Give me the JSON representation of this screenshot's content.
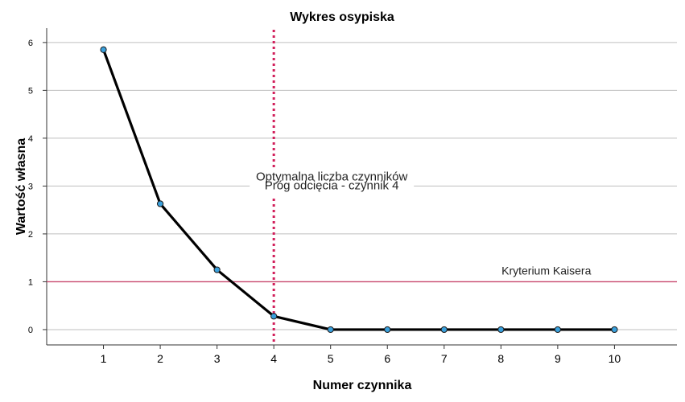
{
  "chart_data": {
    "type": "line",
    "title": "Wykres osypiska",
    "xlabel": "Numer czynnika",
    "ylabel": "Wartość własna",
    "x": [
      1,
      2,
      3,
      4,
      5,
      6,
      7,
      8,
      9,
      10
    ],
    "series": [
      {
        "values": [
          5.85,
          2.63,
          1.25,
          0.28,
          0.0,
          0.0,
          0.0,
          0.0,
          0.0,
          0.0
        ]
      }
    ],
    "xticks": [
      "1",
      "2",
      "3",
      "4",
      "5",
      "6",
      "7",
      "8",
      "9",
      "10"
    ],
    "yticks": [
      "0",
      "1",
      "2",
      "3",
      "4",
      "5",
      "6"
    ],
    "xlim": [
      0,
      11.1
    ],
    "ylim": [
      -0.32,
      6.3
    ],
    "grid": "horizontal",
    "annotations": {
      "cutoff": {
        "x": 4,
        "line1": "Optymalna liczba czynników",
        "line2": "Próg odcięcia - czynnik 4"
      },
      "kaiser": {
        "y": 1,
        "label": "Kryterium Kaisera"
      }
    },
    "colors": {
      "line": "#000000",
      "marker_fill": "#3aa0dc",
      "marker_stroke": "#1a1a1a",
      "kaiser_line": "#c8476d",
      "cutoff_line": "#d11e5a",
      "grid": "#bfbfbf",
      "axis": "#333333"
    }
  }
}
